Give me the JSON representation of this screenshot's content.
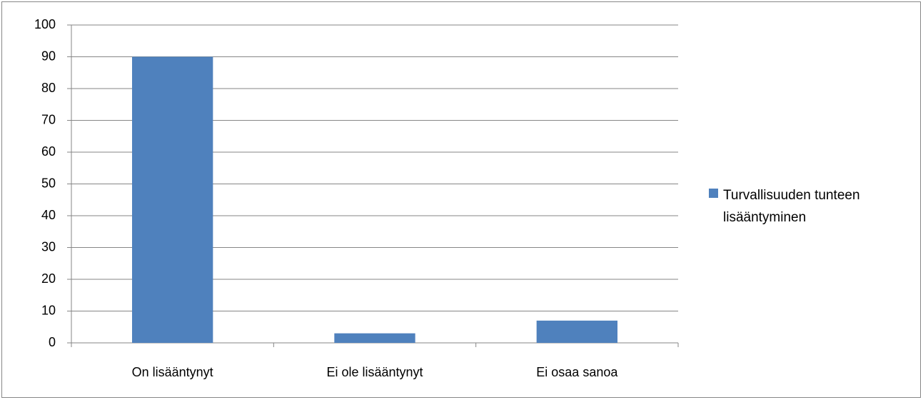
{
  "chart_data": {
    "type": "bar",
    "categories": [
      "On lisääntynyt",
      "Ei ole lisääntynyt",
      "Ei osaa sanoa"
    ],
    "series": [
      {
        "name": "Turvallisuuden tunteen lisääntyminen",
        "color": "#4f81bd",
        "values": [
          90,
          3,
          7
        ]
      }
    ],
    "ylim": [
      0,
      100
    ],
    "yticks": [
      0,
      10,
      20,
      30,
      40,
      50,
      60,
      70,
      80,
      90,
      100
    ],
    "grid": true,
    "legend": "right"
  }
}
